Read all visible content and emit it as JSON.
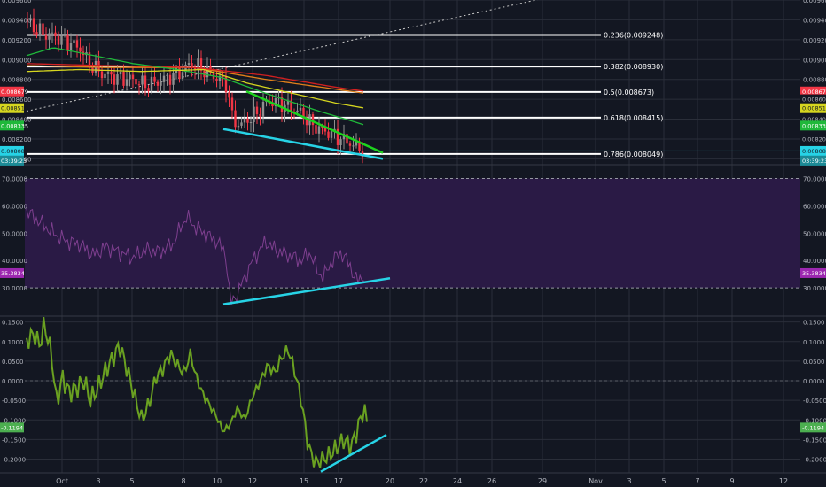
{
  "colors": {
    "background": "#131722",
    "grid": "#2a2e39",
    "axis_text": "#b2b5be",
    "candle_up": "#8f8f8f",
    "candle_down": "#f23645",
    "fib_line": "#ffffff",
    "rsi_band_fill": "#2a1a45",
    "rsi_line": "#7e3f8f",
    "rsi_badge": "#9c27b0",
    "osc_line": "#6aa121",
    "trend_green": "#1ed31e",
    "trend_cyan": "#27d3e6",
    "ma_green": "#1fb83a",
    "ma_yellow": "#d6d61f",
    "ma_red": "#d32020",
    "ma_orange": "#e0801a"
  },
  "price_axis": {
    "ticks": [
      "0.009600",
      "0.009400",
      "0.009200",
      "0.009000",
      "0.008800",
      "0.008600",
      "0.008400",
      "0.008200",
      "0.008000"
    ]
  },
  "price_badges_left": [
    {
      "text": "0.008679",
      "bg": "#f23645",
      "fg": "#ffffff"
    },
    {
      "text": "0.008510",
      "bg": "#d6d61f",
      "fg": "#131722"
    },
    {
      "text": "0.008335",
      "bg": "#1fb83a",
      "fg": "#ffffff"
    },
    {
      "text": "0.008080",
      "bg": "#27d3e6",
      "fg": "#131722"
    },
    {
      "text": "03:39:23",
      "bg": "#1c8a96",
      "fg": "#ffffff"
    }
  ],
  "price_badges_right": [
    {
      "text": "0.008679",
      "bg": "#f23645",
      "fg": "#ffffff"
    },
    {
      "text": "0.008600",
      "bg": "#131722",
      "fg": "#b2b5be"
    },
    {
      "text": "0.008510",
      "bg": "#d6d61f",
      "fg": "#131722"
    },
    {
      "text": "0.008400",
      "bg": "#131722",
      "fg": "#b2b5be"
    },
    {
      "text": "0.008335",
      "bg": "#1fb83a",
      "fg": "#ffffff"
    },
    {
      "text": "0.008200",
      "bg": "#131722",
      "fg": "#b2b5be"
    },
    {
      "text": "0.008080",
      "bg": "#27d3e6",
      "fg": "#131722"
    },
    {
      "text": "03:39:23",
      "bg": "#1c8a96",
      "fg": "#ffffff"
    }
  ],
  "fib_labels": [
    "0.236(0.009248)",
    "0.382(0.008930)",
    "0.5(0.008673)",
    "0.618(0.008415)",
    "0.786(0.008049)"
  ],
  "rsi_axis": {
    "ticks": [
      "70.0000",
      "60.0000",
      "50.0000",
      "40.0000",
      "30.0000"
    ],
    "current_label": "35.3834"
  },
  "osc_axis": {
    "ticks": [
      "0.1500",
      "0.1000",
      "0.0500",
      "0.0000",
      "-0.0500",
      "-0.1000",
      "-0.1500",
      "-0.2000"
    ],
    "current_label": "-0.1194"
  },
  "time_axis": {
    "labels": [
      "Oct",
      "3",
      "5",
      "8",
      "10",
      "12",
      "15",
      "17",
      "20",
      "22",
      "24",
      "26",
      "29",
      "Nov",
      "3",
      "5",
      "7",
      "9",
      "12"
    ]
  },
  "chart_data": [
    {
      "type": "candlestick",
      "pane": "price",
      "ylim": [
        0.00795,
        0.0096
      ],
      "fib_levels": [
        {
          "ratio": "0.236",
          "price": 0.009248
        },
        {
          "ratio": "0.382",
          "price": 0.00893
        },
        {
          "ratio": "0.5",
          "price": 0.008673
        },
        {
          "ratio": "0.618",
          "price": 0.008415
        },
        {
          "ratio": "0.786",
          "price": 0.008049
        }
      ],
      "last_price": 0.00808,
      "moving_averages": [
        {
          "color": "red",
          "last": 0.008679
        },
        {
          "color": "yellow",
          "last": 0.00851
        },
        {
          "color": "green",
          "last": 0.008335
        }
      ],
      "trendlines": [
        "descending resistance (green)",
        "support (cyan)",
        "long-term rising (dotted)"
      ]
    },
    {
      "type": "line",
      "pane": "rsi",
      "ylim": [
        20,
        75
      ],
      "band": [
        30,
        70
      ],
      "last_value": 35.3834
    },
    {
      "type": "line",
      "pane": "oscillator",
      "ylim": [
        -0.235,
        0.165
      ],
      "last_value": -0.1194
    }
  ]
}
